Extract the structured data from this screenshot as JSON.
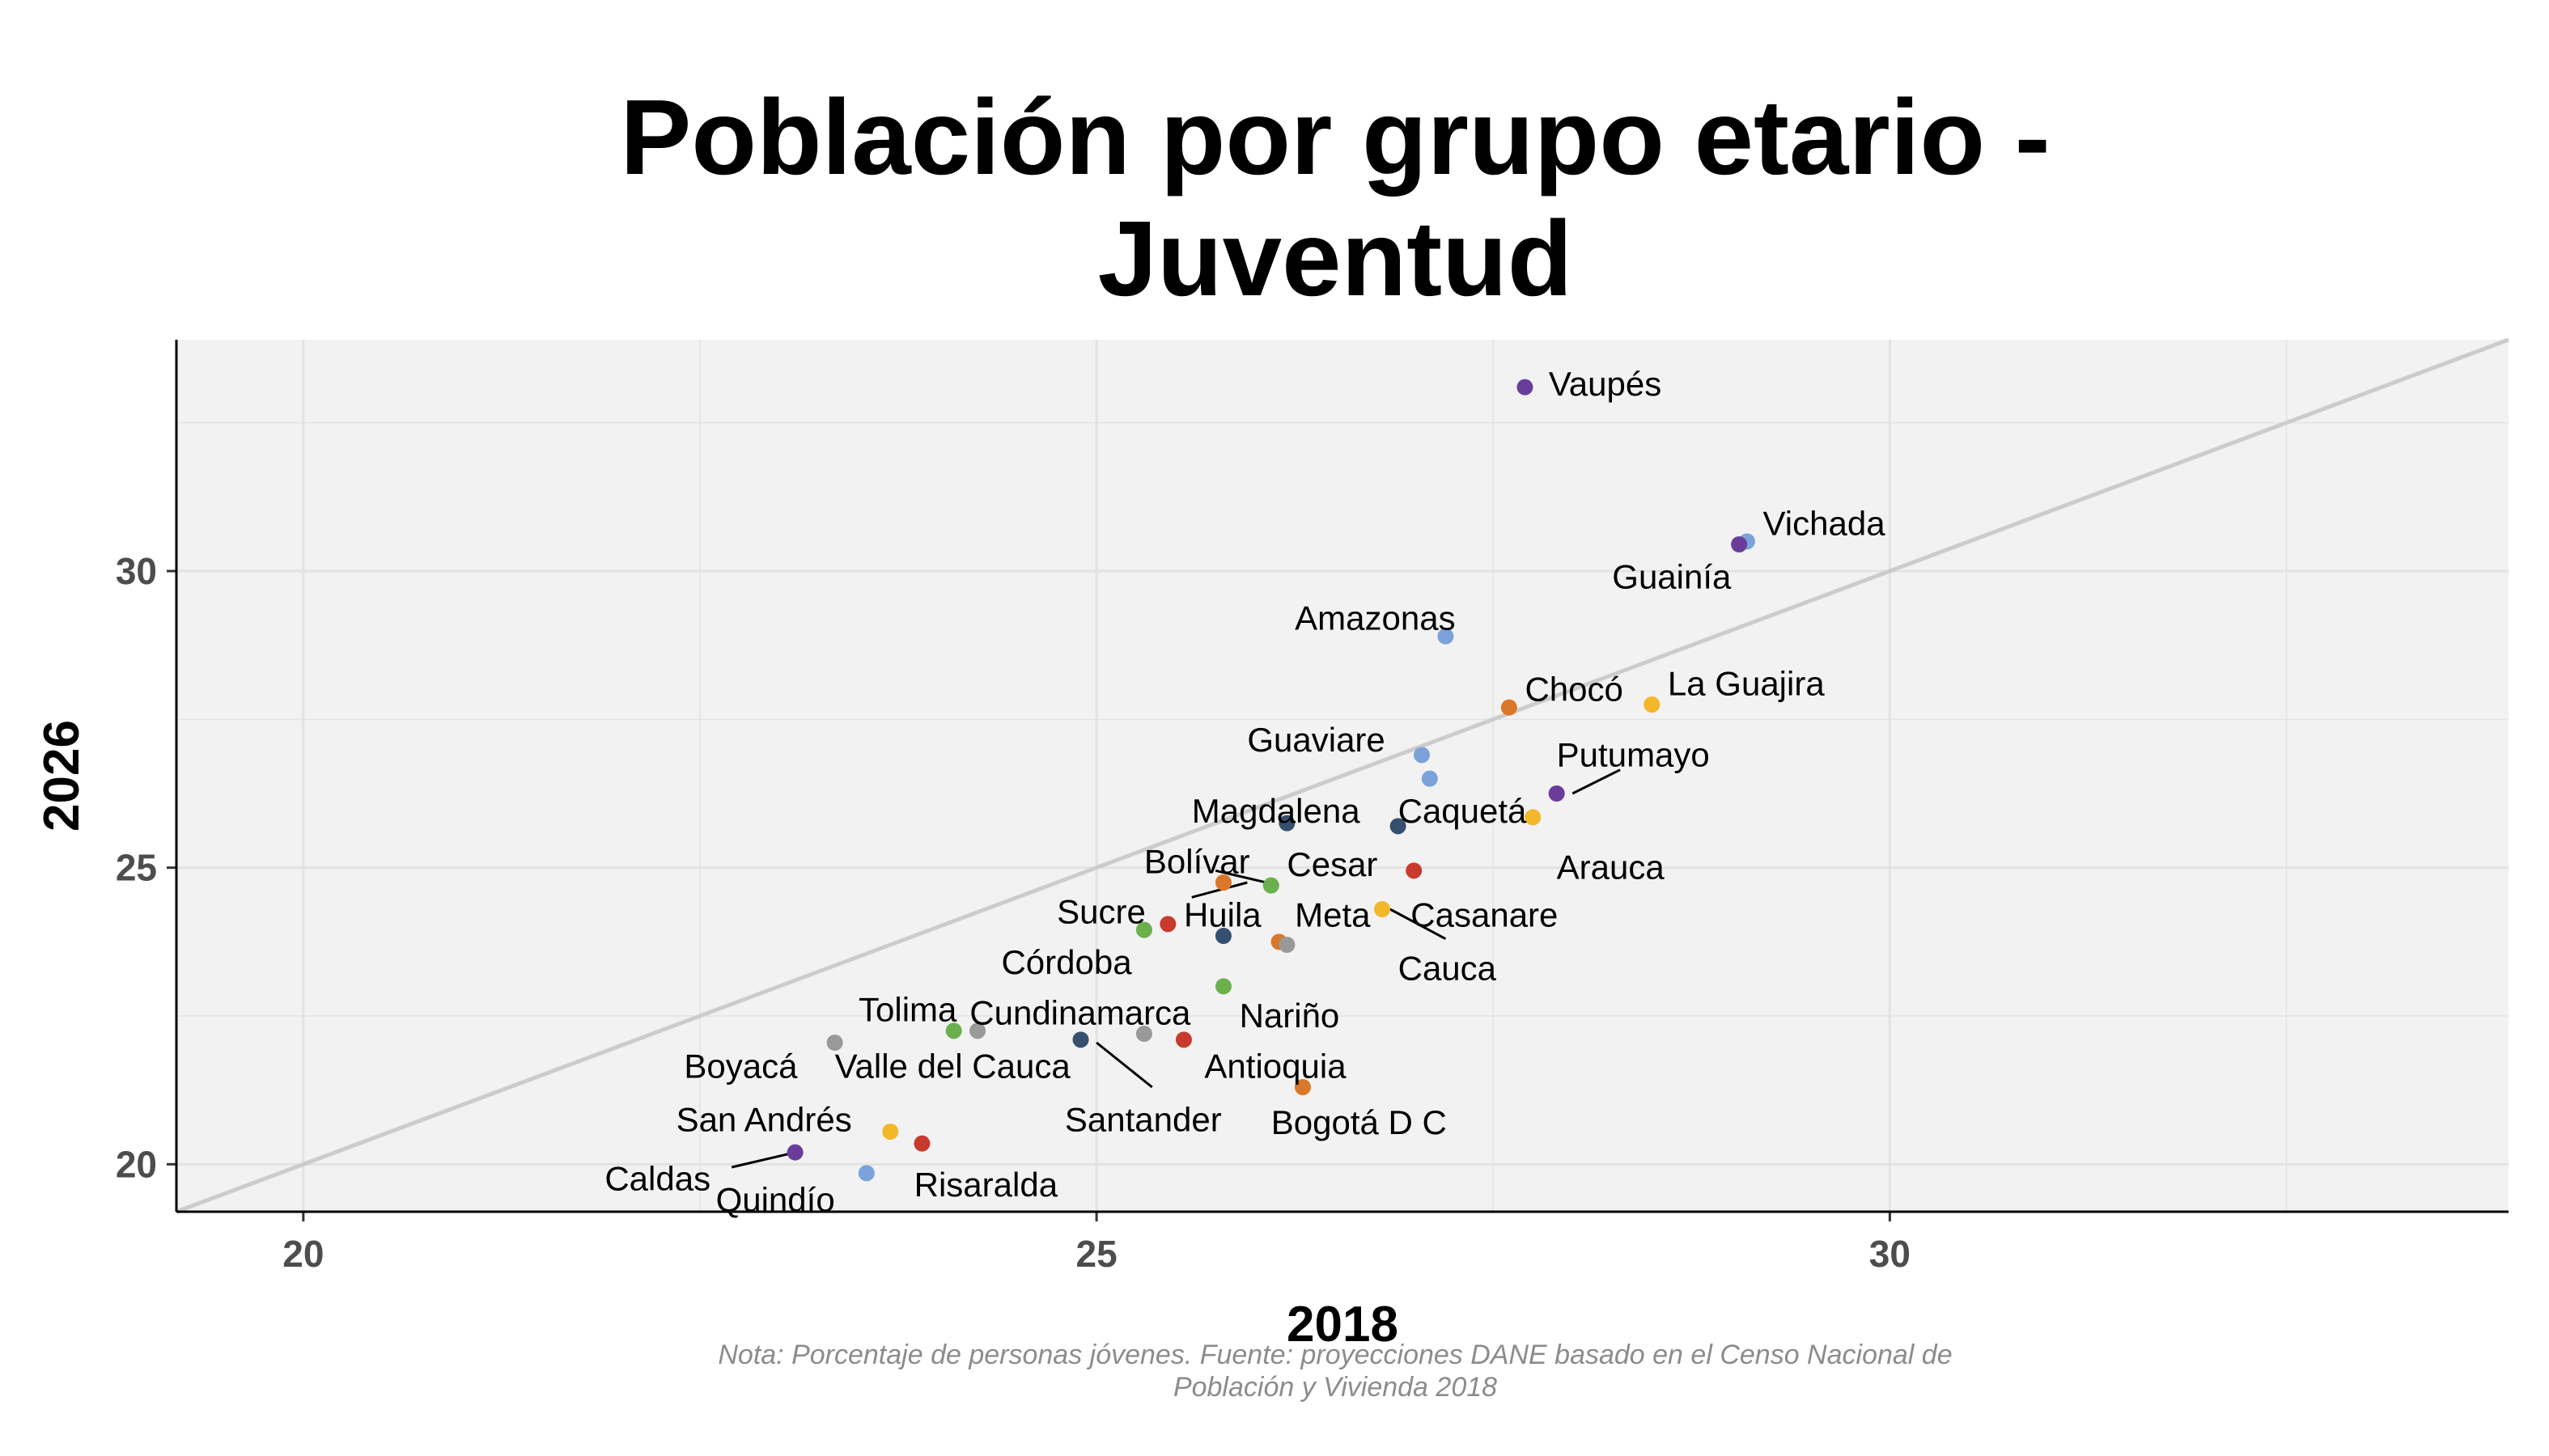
{
  "chart_data": {
    "type": "scatter",
    "title": [
      "Población por grupo etario -",
      "Juventud"
    ],
    "xlabel": "2018",
    "ylabel": "2026",
    "xlim": [
      19.2,
      33.9
    ],
    "ylim": [
      19.2,
      33.9
    ],
    "xticks": [
      20,
      25,
      30
    ],
    "yticks": [
      20,
      25,
      30
    ],
    "grid": true,
    "reference_line": "y = x",
    "caption": [
      "Nota: Porcentaje de personas jóvenes. Fuente: proyecciones DANE basado en el Censo Nacional de",
      "Población y Vivienda 2018"
    ],
    "points": [
      {
        "name": "Vaupés",
        "x": 27.7,
        "y": 33.1,
        "color": "#6a3d9a"
      },
      {
        "name": "Vichada",
        "x": 29.1,
        "y": 30.5,
        "color": "#7ba2db"
      },
      {
        "name": "Guainía",
        "x": 29.05,
        "y": 30.45,
        "color": "#6a3d9a"
      },
      {
        "name": "Amazonas",
        "x": 27.2,
        "y": 28.9,
        "color": "#7ba2db"
      },
      {
        "name": "Chocó",
        "x": 27.6,
        "y": 27.7,
        "color": "#d9772a"
      },
      {
        "name": "La Guajira",
        "x": 28.5,
        "y": 27.75,
        "color": "#f2b829"
      },
      {
        "name": "Guaviare",
        "x": 27.05,
        "y": 26.9,
        "color": "#7ba2db"
      },
      {
        "name": "Putumayo",
        "x": 27.9,
        "y": 26.25,
        "color": "#6a3d9a"
      },
      {
        "name": "Caquetá",
        "x": 27.1,
        "y": 26.5,
        "color": "#7ba2db"
      },
      {
        "name": "Magdalena",
        "x": 26.2,
        "y": 25.75,
        "color": "#34506e"
      },
      {
        "name": "Arauca",
        "x": 27.75,
        "y": 25.85,
        "color": "#f2b829"
      },
      {
        "name": "Cesar",
        "x": 26.9,
        "y": 25.7,
        "color": "#34506e"
      },
      {
        "name": "Casanare",
        "x": 27.0,
        "y": 24.95,
        "color": "#c93a2e"
      },
      {
        "name": "Bolívar",
        "x": 26.1,
        "y": 24.7,
        "color": "#6ab04c"
      },
      {
        "name": "Sucre",
        "x": 25.8,
        "y": 24.75,
        "color": "#d9772a"
      },
      {
        "name": "Cauca",
        "x": 26.8,
        "y": 24.3,
        "color": "#f2b829"
      },
      {
        "name": "Huila",
        "x": 25.45,
        "y": 24.05,
        "color": "#c93a2e"
      },
      {
        "name": "Córdoba",
        "x": 25.3,
        "y": 23.95,
        "color": "#6ab04c"
      },
      {
        "name": "Meta",
        "x": 25.8,
        "y": 23.85,
        "color": "#34506e"
      },
      {
        "name": "Bogotá D C",
        "x": 26.15,
        "y": 23.75,
        "color": "#d9772a"
      },
      {
        "name": "Antioquia",
        "x": 26.2,
        "y": 23.7,
        "color": "#999999"
      },
      {
        "name": "Nariño",
        "x": 25.8,
        "y": 23.0,
        "color": "#6ab04c"
      },
      {
        "name": "Tolima",
        "x": 24.1,
        "y": 22.25,
        "color": "#6ab04c"
      },
      {
        "name": "Cundinamarca",
        "x": 24.25,
        "y": 22.25,
        "color": "#999999"
      },
      {
        "name": "Santander",
        "x": 24.9,
        "y": 22.1,
        "color": "#34506e"
      },
      {
        "name": "Valle del Cauca",
        "x": 25.3,
        "y": 22.2,
        "color": "#999999"
      },
      {
        "name": "Boyacá",
        "x": 23.35,
        "y": 22.05,
        "color": "#999999"
      },
      {
        "name": "Risaralda",
        "x": 25.55,
        "y": 22.1,
        "color": "#c93a2e"
      },
      {
        "name": "Quindío",
        "x": 26.3,
        "y": 21.3,
        "color": "#d9772a"
      },
      {
        "name": "San Andrés",
        "x": 23.7,
        "y": 20.55,
        "color": "#f2b829"
      },
      {
        "name": "Caldas",
        "x": 23.9,
        "y": 20.35,
        "color": "#c93a2e"
      },
      {
        "name": "Boyacá-2",
        "x": 23.1,
        "y": 20.2,
        "color": "#6a3d9a"
      },
      {
        "name": "Quindío-2",
        "x": 23.55,
        "y": 19.85,
        "color": "#7ba2db"
      }
    ],
    "labels": [
      {
        "text": "Vaupés",
        "x": 27.85,
        "y": 33.15,
        "anchor": "start"
      },
      {
        "text": "Vichada",
        "x": 29.2,
        "y": 30.8,
        "anchor": "start"
      },
      {
        "text": "Guainía",
        "x": 28.25,
        "y": 29.9,
        "anchor": "start"
      },
      {
        "text": "Amazonas",
        "x": 26.25,
        "y": 29.2,
        "anchor": "start"
      },
      {
        "text": "Chocó",
        "x": 27.7,
        "y": 28.0,
        "anchor": "start"
      },
      {
        "text": "La Guajira",
        "x": 28.6,
        "y": 28.1,
        "anchor": "start"
      },
      {
        "text": "Guaviare",
        "x": 25.95,
        "y": 27.15,
        "anchor": "start"
      },
      {
        "text": "Putumayo",
        "x": 27.9,
        "y": 26.9,
        "anchor": "start"
      },
      {
        "text": "Caquetá",
        "x": 26.9,
        "y": 25.95,
        "anchor": "start"
      },
      {
        "text": "Magdalena",
        "x": 25.6,
        "y": 25.95,
        "anchor": "start"
      },
      {
        "text": "Arauca",
        "x": 27.9,
        "y": 25.0,
        "anchor": "start"
      },
      {
        "text": "Cesar",
        "x": 26.2,
        "y": 25.05,
        "anchor": "start"
      },
      {
        "text": "Casanare",
        "x": 26.98,
        "y": 24.2,
        "anchor": "start"
      },
      {
        "text": "Bolívar",
        "x": 25.3,
        "y": 25.1,
        "anchor": "start"
      },
      {
        "text": "Sucre",
        "x": 24.75,
        "y": 24.25,
        "anchor": "start"
      },
      {
        "text": "Cauca",
        "x": 26.9,
        "y": 23.3,
        "anchor": "start"
      },
      {
        "text": "Huila",
        "x": 25.55,
        "y": 24.2,
        "anchor": "start"
      },
      {
        "text": "Córdoba",
        "x": 24.4,
        "y": 23.4,
        "anchor": "start"
      },
      {
        "text": "Meta",
        "x": 26.25,
        "y": 24.2,
        "anchor": "start"
      },
      {
        "text": "Nariño",
        "x": 25.9,
        "y": 22.5,
        "anchor": "start"
      },
      {
        "text": "Tolima",
        "x": 23.5,
        "y": 22.6,
        "anchor": "start"
      },
      {
        "text": "Cundinamarca",
        "x": 24.2,
        "y": 22.55,
        "anchor": "start"
      },
      {
        "text": "Boyacá",
        "x": 22.4,
        "y": 21.65,
        "anchor": "start"
      },
      {
        "text": "Valle del Cauca",
        "x": 23.35,
        "y": 21.65,
        "anchor": "start"
      },
      {
        "text": "Antioquia",
        "x": 25.68,
        "y": 21.65,
        "anchor": "start"
      },
      {
        "text": "San Andrés",
        "x": 22.35,
        "y": 20.75,
        "anchor": "start"
      },
      {
        "text": "Santander",
        "x": 24.8,
        "y": 20.75,
        "anchor": "start"
      },
      {
        "text": "Bogotá D C",
        "x": 26.1,
        "y": 20.7,
        "anchor": "start"
      },
      {
        "text": "Caldas",
        "x": 21.9,
        "y": 19.75,
        "anchor": "start"
      },
      {
        "text": "Risaralda",
        "x": 23.85,
        "y": 19.65,
        "anchor": "start"
      },
      {
        "text": "Quindío",
        "x": 22.6,
        "y": 19.4,
        "anchor": "start"
      }
    ],
    "leaders": [
      {
        "from": [
          28.0,
          26.25
        ],
        "to": [
          28.3,
          26.65
        ]
      },
      {
        "from": [
          25.95,
          24.75
        ],
        "to": [
          25.6,
          24.5
        ]
      },
      {
        "from": [
          26.15,
          24.7
        ],
        "to": [
          25.75,
          24.95
        ]
      },
      {
        "from": [
          26.85,
          24.3
        ],
        "to": [
          27.2,
          23.8
        ]
      },
      {
        "from": [
          25.0,
          22.05
        ],
        "to": [
          25.35,
          21.3
        ]
      },
      {
        "from": [
          23.1,
          20.2
        ],
        "to": [
          22.7,
          19.95
        ]
      }
    ]
  }
}
